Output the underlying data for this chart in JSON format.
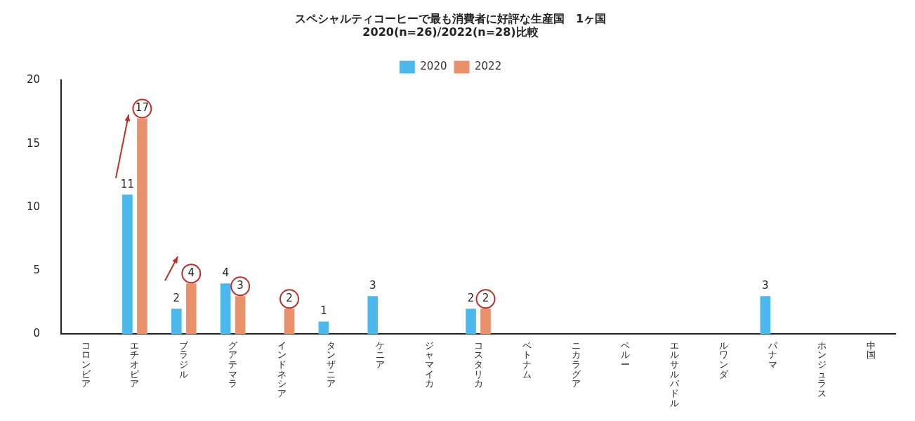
{
  "chart_data": {
    "type": "bar",
    "title": "スペシャルティコーヒーで最も消費者に好評な生産国　1ヶ国",
    "subtitle": "2020(n=26)/2022(n=28)比較",
    "categories": [
      "コロンビア",
      "エチオピア",
      "ブラジル",
      "グアテマラ",
      "インドネシア",
      "タンザニア",
      "ケニア",
      "ジャマイカ",
      "コスタリカ",
      "ベトナム",
      "ニカラグア",
      "ペルー",
      "エルサルバドル",
      "ルワンダ",
      "パナマ",
      "ホンジュラス",
      "中国"
    ],
    "series": [
      {
        "name": "2020",
        "color": "#4db8ec",
        "values": [
          0,
          11,
          2,
          4,
          0,
          1,
          3,
          0,
          2,
          0,
          0,
          0,
          0,
          0,
          3,
          0,
          0
        ],
        "value_labels": [
          null,
          "11",
          "2",
          "4",
          null,
          "1",
          "3",
          null,
          "2",
          null,
          null,
          null,
          null,
          null,
          "3",
          null,
          null
        ]
      },
      {
        "name": "2022",
        "color": "#e8916a",
        "values": [
          0,
          17,
          4,
          3,
          2,
          0,
          0,
          0,
          2,
          0,
          0,
          0,
          0,
          0,
          0,
          0,
          0
        ],
        "value_labels": [
          null,
          "17",
          "4",
          "3",
          "2",
          null,
          null,
          null,
          "2",
          null,
          null,
          null,
          null,
          null,
          null,
          null,
          null
        ]
      }
    ],
    "ylim": [
      0,
      20
    ],
    "yticks": [
      0,
      5,
      10,
      15,
      20
    ],
    "grid": false,
    "legend": "top"
  }
}
